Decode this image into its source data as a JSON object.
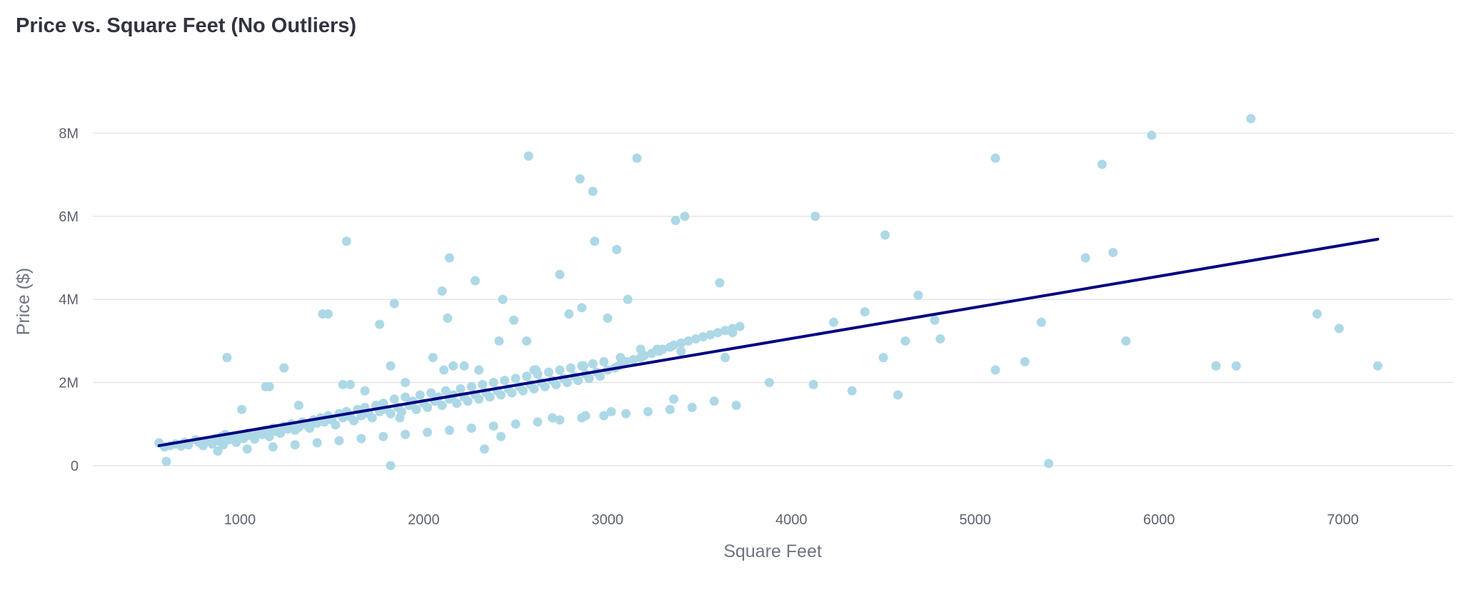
{
  "page": {
    "title": "Price vs. Square Feet (No Outliers)"
  },
  "colors": {
    "points": "#add8e6",
    "trendline": "#000080",
    "grid": "#e3e5e9",
    "tick_text": "#5f6370",
    "title_text": "#31333f"
  },
  "chart_data": {
    "type": "scatter",
    "title": "Price vs. Square Feet (No Outliers)",
    "xlabel": "Square Feet",
    "ylabel": "Price ($)",
    "xlim": [
      200,
      7600
    ],
    "ylim": [
      -1000000,
      8800000
    ],
    "x_ticks": [
      1000,
      2000,
      3000,
      4000,
      5000,
      6000,
      7000
    ],
    "x_tick_labels": [
      "1000",
      "2000",
      "3000",
      "4000",
      "5000",
      "6000",
      "7000"
    ],
    "y_ticks": [
      0,
      2000000,
      4000000,
      6000000,
      8000000
    ],
    "y_tick_labels": [
      "0",
      "2M",
      "4M",
      "6M",
      "8M"
    ],
    "grid": true,
    "trendline": {
      "x": [
        560,
        7190
      ],
      "y": [
        480000,
        5450000
      ]
    },
    "points": {
      "x": [
        560,
        590,
        620,
        650,
        680,
        700,
        720,
        760,
        780,
        800,
        820,
        850,
        870,
        890,
        900,
        910,
        920,
        940,
        960,
        980,
        1000,
        1020,
        1040,
        1060,
        1080,
        1100,
        1120,
        1140,
        1160,
        1180,
        1200,
        1220,
        1240,
        1260,
        1280,
        1300,
        1320,
        1340,
        1360,
        1380,
        1400,
        1420,
        1440,
        1460,
        1480,
        1500,
        1520,
        1540,
        1560,
        1580,
        1600,
        1620,
        1640,
        1660,
        1680,
        1700,
        1720,
        1740,
        1760,
        1780,
        1800,
        1820,
        1840,
        1860,
        1880,
        1900,
        1920,
        1940,
        1960,
        1980,
        2000,
        2020,
        2040,
        2060,
        2080,
        2100,
        2120,
        2140,
        2160,
        2180,
        2200,
        2220,
        2240,
        2260,
        2280,
        2300,
        2320,
        2340,
        2360,
        2380,
        2400,
        2420,
        2440,
        2460,
        2480,
        2500,
        2520,
        2540,
        2560,
        2580,
        2600,
        2620,
        2640,
        2660,
        2680,
        2700,
        2720,
        2740,
        2760,
        2780,
        2800,
        2820,
        2840,
        2860,
        2880,
        2900,
        2920,
        2940,
        2960,
        2980,
        3000,
        3040,
        3060,
        3080,
        3100,
        3140,
        3180,
        3200,
        3240,
        3280,
        3300,
        3340,
        3360,
        3400,
        3440,
        3480,
        3520,
        3560,
        3600,
        3640,
        3680,
        3720,
        880,
        1040,
        1180,
        1300,
        1420,
        1540,
        1660,
        1780,
        1900,
        2020,
        2140,
        2260,
        2380,
        2500,
        2620,
        2740,
        2860,
        2980,
        3100,
        3220,
        3340,
        3460,
        1160,
        1240,
        1480,
        1580,
        1600,
        1760,
        1820,
        1840,
        1870,
        2050,
        2100,
        2110,
        2130,
        2140,
        2220,
        2280,
        2300,
        2330,
        2420,
        2430,
        2490,
        2560,
        2570,
        2610,
        2700,
        2740,
        2790,
        2850,
        2860,
        2870,
        2880,
        2920,
        2930,
        3000,
        3020,
        3050,
        3070,
        3110,
        3160,
        3180,
        3270,
        3360,
        3370,
        3400,
        3420,
        3580,
        3610,
        3640,
        3680,
        3700,
        3880,
        4120,
        4130,
        4230,
        4330,
        4400,
        4500,
        4510,
        4580,
        4620,
        4690,
        4780,
        4810,
        5110,
        5110,
        5270,
        5360,
        5400,
        5600,
        5690,
        5750,
        5820,
        5960,
        6310,
        6420,
        6500,
        6860,
        6980,
        7190,
        600,
        1820,
        930,
        1010,
        1140,
        1320,
        1450,
        1560,
        1680,
        1900,
        2160,
        2410,
        2600
      ],
      "y": [
        550000,
        450000,
        480000,
        520000,
        470000,
        560000,
        500000,
        620000,
        550000,
        480000,
        600000,
        520000,
        650000,
        580000,
        700000,
        500000,
        750000,
        620000,
        680000,
        560000,
        700000,
        650000,
        780000,
        720000,
        640000,
        800000,
        750000,
        850000,
        700000,
        900000,
        820000,
        780000,
        950000,
        880000,
        1000000,
        850000,
        920000,
        1050000,
        980000,
        900000,
        1100000,
        1020000,
        1150000,
        1050000,
        1200000,
        1100000,
        980000,
        1250000,
        1150000,
        1300000,
        1180000,
        1080000,
        1350000,
        1200000,
        1400000,
        1250000,
        1150000,
        1450000,
        1300000,
        1500000,
        1350000,
        1250000,
        1600000,
        1400000,
        1300000,
        1650000,
        1450000,
        1550000,
        1350000,
        1700000,
        1500000,
        1400000,
        1750000,
        1550000,
        1650000,
        1450000,
        1800000,
        1600000,
        1700000,
        1500000,
        1850000,
        1650000,
        1550000,
        1900000,
        1700000,
        1600000,
        1950000,
        1750000,
        1650000,
        2000000,
        1800000,
        1700000,
        2050000,
        1850000,
        1750000,
        2100000,
        1900000,
        1800000,
        2150000,
        1950000,
        1850000,
        2200000,
        2000000,
        1900000,
        2250000,
        2050000,
        1950000,
        2300000,
        2100000,
        2000000,
        2350000,
        2150000,
        2050000,
        2400000,
        2200000,
        2100000,
        2450000,
        2250000,
        2150000,
        2500000,
        2300000,
        2350000,
        2400000,
        2450000,
        2500000,
        2550000,
        2600000,
        2650000,
        2700000,
        2750000,
        2800000,
        2850000,
        2900000,
        2950000,
        3000000,
        3050000,
        3100000,
        3150000,
        3200000,
        3250000,
        3300000,
        3350000,
        350000,
        400000,
        450000,
        500000,
        550000,
        600000,
        650000,
        700000,
        750000,
        800000,
        850000,
        900000,
        950000,
        1000000,
        1050000,
        1100000,
        1150000,
        1200000,
        1250000,
        1300000,
        1350000,
        1400000,
        1900000,
        2350000,
        3650000,
        5400000,
        1950000,
        3400000,
        2400000,
        3900000,
        1150000,
        2600000,
        4200000,
        2300000,
        3550000,
        5000000,
        2400000,
        4450000,
        2300000,
        400000,
        700000,
        4000000,
        3500000,
        3000000,
        7450000,
        2300000,
        1150000,
        4600000,
        3650000,
        6900000,
        3800000,
        2400000,
        1200000,
        6600000,
        5400000,
        3550000,
        1300000,
        5200000,
        2600000,
        4000000,
        7400000,
        2800000,
        2800000,
        1600000,
        5900000,
        2750000,
        6000000,
        1550000,
        4400000,
        2600000,
        3200000,
        1450000,
        2000000,
        1950000,
        6000000,
        3450000,
        1800000,
        3700000,
        2600000,
        5550000,
        1700000,
        3000000,
        4100000,
        3500000,
        3050000,
        7400000,
        2300000,
        2500000,
        3450000,
        50000,
        5000000,
        7250000,
        5130000,
        3000000,
        7950000,
        2400000,
        2400000,
        8350000,
        3650000,
        3300000,
        2400000,
        100000,
        0,
        2600000,
        1350000,
        1900000,
        1450000,
        3650000,
        1950000,
        1800000,
        2000000,
        2400000,
        3000000,
        2300000
      ]
    }
  }
}
